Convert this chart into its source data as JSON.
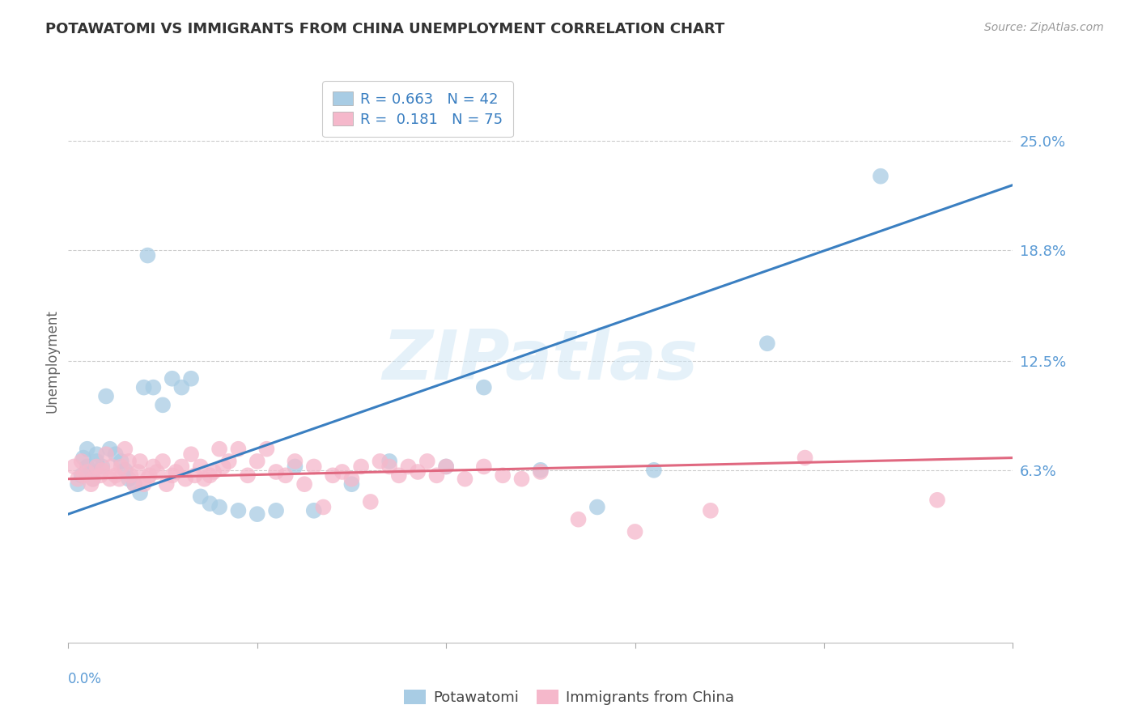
{
  "title": "POTAWATOMI VS IMMIGRANTS FROM CHINA UNEMPLOYMENT CORRELATION CHART",
  "source": "Source: ZipAtlas.com",
  "ylabel": "Unemployment",
  "ytick_labels": [
    "6.3%",
    "12.5%",
    "18.8%",
    "25.0%"
  ],
  "ytick_values": [
    0.063,
    0.125,
    0.188,
    0.25
  ],
  "xmin": 0.0,
  "xmax": 0.5,
  "ymin": -0.035,
  "ymax": 0.285,
  "blue_color": "#a8cce4",
  "pink_color": "#f5b8cb",
  "blue_line_color": "#3a7fc1",
  "pink_line_color": "#e06880",
  "legend_blue_R": "0.663",
  "legend_blue_N": "42",
  "legend_pink_R": "0.181",
  "legend_pink_N": "75",
  "watermark": "ZIPatlas",
  "blue_scatter_x": [
    0.005,
    0.007,
    0.008,
    0.01,
    0.01,
    0.012,
    0.013,
    0.015,
    0.015,
    0.018,
    0.02,
    0.022,
    0.025,
    0.028,
    0.03,
    0.032,
    0.035,
    0.038,
    0.04,
    0.042,
    0.045,
    0.05,
    0.055,
    0.06,
    0.065,
    0.07,
    0.075,
    0.08,
    0.09,
    0.1,
    0.11,
    0.12,
    0.13,
    0.15,
    0.17,
    0.2,
    0.22,
    0.25,
    0.28,
    0.31,
    0.37,
    0.43
  ],
  "blue_scatter_y": [
    0.055,
    0.06,
    0.07,
    0.065,
    0.075,
    0.062,
    0.058,
    0.072,
    0.068,
    0.065,
    0.105,
    0.075,
    0.072,
    0.068,
    0.063,
    0.058,
    0.055,
    0.05,
    0.11,
    0.185,
    0.11,
    0.1,
    0.115,
    0.11,
    0.115,
    0.048,
    0.044,
    0.042,
    0.04,
    0.038,
    0.04,
    0.065,
    0.04,
    0.055,
    0.068,
    0.065,
    0.11,
    0.063,
    0.042,
    0.063,
    0.135,
    0.23
  ],
  "pink_scatter_x": [
    0.003,
    0.005,
    0.007,
    0.008,
    0.01,
    0.012,
    0.013,
    0.015,
    0.017,
    0.018,
    0.02,
    0.022,
    0.023,
    0.025,
    0.027,
    0.028,
    0.03,
    0.032,
    0.033,
    0.035,
    0.037,
    0.038,
    0.04,
    0.042,
    0.043,
    0.045,
    0.047,
    0.05,
    0.052,
    0.055,
    0.057,
    0.06,
    0.062,
    0.065,
    0.067,
    0.07,
    0.072,
    0.075,
    0.077,
    0.08,
    0.082,
    0.085,
    0.09,
    0.095,
    0.1,
    0.105,
    0.11,
    0.115,
    0.12,
    0.125,
    0.13,
    0.135,
    0.14,
    0.145,
    0.15,
    0.155,
    0.16,
    0.165,
    0.17,
    0.175,
    0.18,
    0.185,
    0.19,
    0.195,
    0.2,
    0.21,
    0.22,
    0.23,
    0.24,
    0.25,
    0.27,
    0.3,
    0.34,
    0.39,
    0.46
  ],
  "pink_scatter_y": [
    0.065,
    0.058,
    0.068,
    0.06,
    0.062,
    0.055,
    0.058,
    0.065,
    0.06,
    0.063,
    0.072,
    0.058,
    0.065,
    0.06,
    0.058,
    0.065,
    0.075,
    0.068,
    0.06,
    0.055,
    0.062,
    0.068,
    0.055,
    0.058,
    0.06,
    0.065,
    0.062,
    0.068,
    0.055,
    0.06,
    0.062,
    0.065,
    0.058,
    0.072,
    0.06,
    0.065,
    0.058,
    0.06,
    0.062,
    0.075,
    0.065,
    0.068,
    0.075,
    0.06,
    0.068,
    0.075,
    0.062,
    0.06,
    0.068,
    0.055,
    0.065,
    0.042,
    0.06,
    0.062,
    0.058,
    0.065,
    0.045,
    0.068,
    0.065,
    0.06,
    0.065,
    0.062,
    0.068,
    0.06,
    0.065,
    0.058,
    0.065,
    0.06,
    0.058,
    0.062,
    0.035,
    0.028,
    0.04,
    0.07,
    0.046
  ],
  "blue_trendline_x": [
    0.0,
    0.5
  ],
  "blue_trendline_y": [
    0.038,
    0.225
  ],
  "pink_trendline_x": [
    0.0,
    0.5
  ],
  "pink_trendline_y": [
    0.058,
    0.07
  ]
}
